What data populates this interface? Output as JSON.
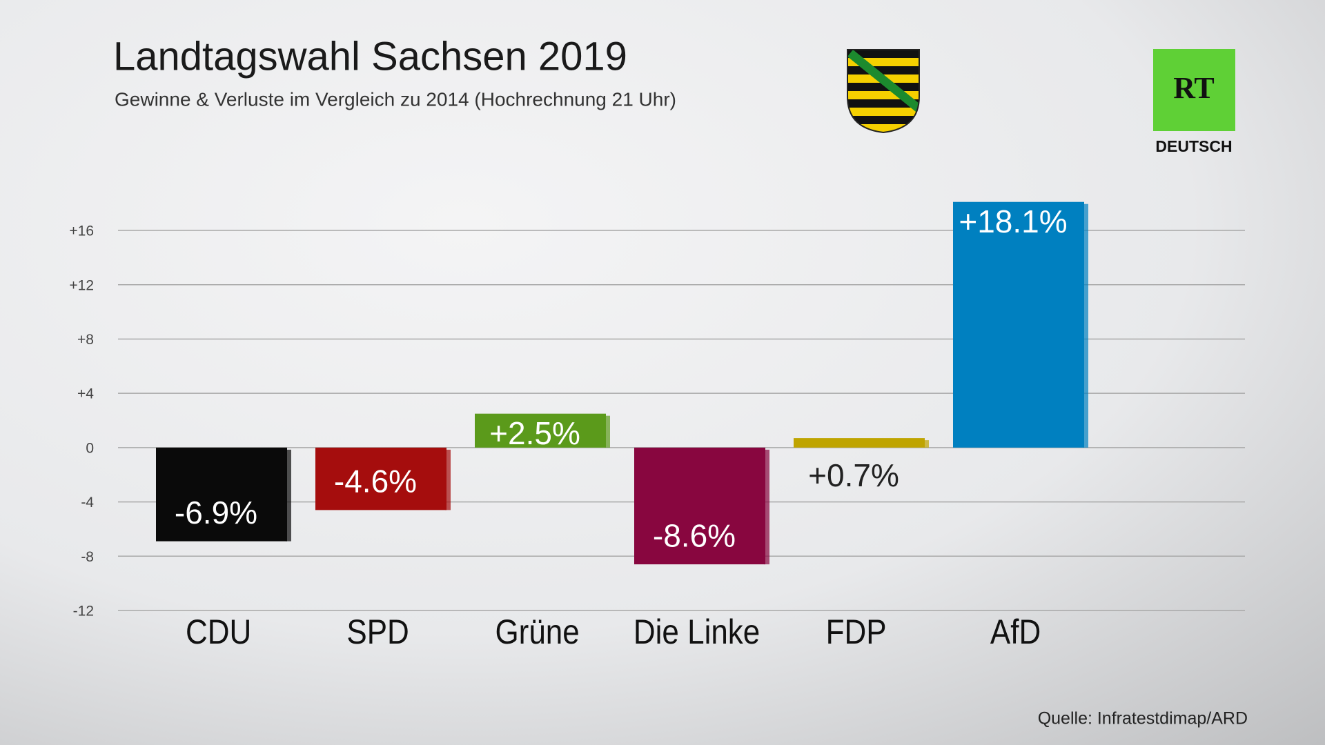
{
  "chart_data": {
    "type": "bar",
    "title": "Landtagswahl Sachsen 2019",
    "subtitle": "Gewinne & Verluste im Vergleich zu 2014 (Hochrechnung 21 Uhr)",
    "categories": [
      "CDU",
      "SPD",
      "Grüne",
      "Die Linke",
      "FDP",
      "AfD"
    ],
    "values": [
      -6.9,
      -4.6,
      2.5,
      -8.6,
      0.7,
      18.1
    ],
    "value_labels": [
      "-6.9%",
      "-4.6%",
      "+2.5%",
      "-8.6%",
      "+0.7%",
      "+18.1%"
    ],
    "colors": [
      "#0a0a0a",
      "#a50d0d",
      "#5b9a1b",
      "#88063f",
      "#bfa400",
      "#0080c0"
    ],
    "ylim": [
      -12,
      19
    ],
    "yticks": [
      {
        "value": 16,
        "label": "+16"
      },
      {
        "value": 12,
        "label": "+12"
      },
      {
        "value": 8,
        "label": "+8"
      },
      {
        "value": 4,
        "label": "+4"
      },
      0,
      -4,
      -8,
      -12
    ],
    "grid": true,
    "source": "Quelle: Infratestdimap/ARD"
  },
  "logo": {
    "text": "RT",
    "subtext": "DEUTSCH"
  }
}
